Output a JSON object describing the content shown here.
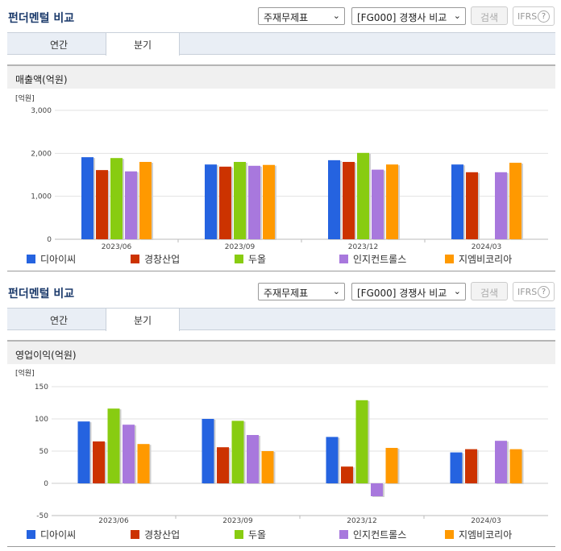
{
  "sections": [
    {
      "header": {
        "title": "펀더멘털 비교",
        "select_statement": "주재무제표",
        "select_peer": "[FG000] 경쟁사 비교",
        "search_label": "검색",
        "ifrs_label": "IFRS",
        "help_label": "?"
      },
      "tabs": [
        {
          "label": "연간",
          "active": false
        },
        {
          "label": "분기",
          "active": true
        }
      ],
      "chart_title": "매출액(억원)"
    },
    {
      "header": {
        "title": "펀더멘털 비교",
        "select_statement": "주재무제표",
        "select_peer": "[FG000] 경쟁사 비교",
        "search_label": "검색",
        "ifrs_label": "IFRS",
        "help_label": "?"
      },
      "tabs": [
        {
          "label": "연간",
          "active": false
        },
        {
          "label": "분기",
          "active": true
        }
      ],
      "chart_title": "영업이익(억원)"
    }
  ],
  "chart_data": [
    {
      "type": "bar",
      "title": "매출액(억원)",
      "unit_label": "[억원]",
      "categories": [
        "2023/06",
        "2023/09",
        "2023/12",
        "2024/03"
      ],
      "ylim": [
        0,
        3000
      ],
      "yticks": [
        0,
        1000,
        2000,
        3000
      ],
      "ytick_labels": [
        "0",
        "1,000",
        "2,000",
        "3,000"
      ],
      "grid": true,
      "legend_position": "bottom",
      "series": [
        {
          "name": "디아이씨",
          "color": "#2563e0",
          "values": [
            1910,
            1740,
            1840,
            1740
          ]
        },
        {
          "name": "경창산업",
          "color": "#cc3300",
          "values": [
            1610,
            1690,
            1800,
            1560
          ]
        },
        {
          "name": "두올",
          "color": "#88cc11",
          "values": [
            1890,
            1800,
            2010,
            null
          ]
        },
        {
          "name": "인지컨트롤스",
          "color": "#a878dd",
          "values": [
            1580,
            1710,
            1620,
            1560
          ]
        },
        {
          "name": "지엠비코리아",
          "color": "#ff9900",
          "values": [
            1800,
            1730,
            1740,
            1780
          ]
        }
      ]
    },
    {
      "type": "bar",
      "title": "영업이익(억원)",
      "unit_label": "[억원]",
      "categories": [
        "2023/06",
        "2023/09",
        "2023/12",
        "2024/03"
      ],
      "ylim": [
        -50,
        150
      ],
      "yticks": [
        -50,
        0,
        50,
        100,
        150
      ],
      "ytick_labels": [
        "-50",
        "0",
        "50",
        "100",
        "150"
      ],
      "grid": true,
      "legend_position": "bottom",
      "series": [
        {
          "name": "디아이씨",
          "color": "#2563e0",
          "values": [
            96,
            100,
            72,
            48
          ]
        },
        {
          "name": "경창산업",
          "color": "#cc3300",
          "values": [
            65,
            56,
            26,
            53
          ]
        },
        {
          "name": "두올",
          "color": "#88cc11",
          "values": [
            116,
            97,
            129,
            null
          ]
        },
        {
          "name": "인지컨트롤스",
          "color": "#a878dd",
          "values": [
            91,
            75,
            -20,
            66
          ]
        },
        {
          "name": "지엠비코리아",
          "color": "#ff9900",
          "values": [
            61,
            50,
            55,
            53
          ]
        }
      ]
    }
  ]
}
